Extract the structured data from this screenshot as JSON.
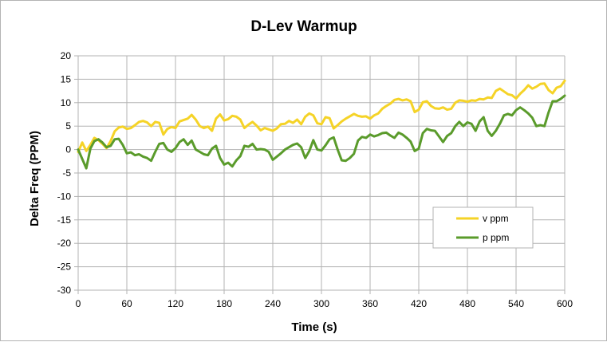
{
  "chart_data": {
    "type": "line",
    "title": "D-Lev Warmup",
    "xlabel": "Time (s)",
    "ylabel": "Delta Freq (PPM)",
    "xlim": [
      0,
      600
    ],
    "ylim": [
      -30,
      20
    ],
    "xticks": [
      0,
      60,
      120,
      180,
      240,
      300,
      360,
      420,
      480,
      540,
      600
    ],
    "yticks": [
      20,
      15,
      10,
      5,
      0,
      -5,
      -10,
      -15,
      -20,
      -25,
      -30
    ],
    "grid": true,
    "legend_position": "bottom-right",
    "series": [
      {
        "name": "v ppm",
        "color": "#f5d327",
        "x": [
          0,
          5,
          10,
          15,
          20,
          25,
          30,
          35,
          40,
          45,
          50,
          55,
          60,
          65,
          70,
          75,
          80,
          85,
          90,
          95,
          100,
          105,
          110,
          115,
          120,
          125,
          130,
          135,
          140,
          145,
          150,
          155,
          160,
          165,
          170,
          175,
          180,
          185,
          190,
          195,
          200,
          205,
          210,
          215,
          220,
          225,
          230,
          235,
          240,
          245,
          250,
          255,
          260,
          265,
          270,
          275,
          280,
          285,
          290,
          295,
          300,
          305,
          310,
          315,
          320,
          325,
          330,
          335,
          340,
          345,
          350,
          355,
          360,
          365,
          370,
          375,
          380,
          385,
          390,
          395,
          400,
          405,
          410,
          415,
          420,
          425,
          430,
          435,
          440,
          445,
          450,
          455,
          460,
          465,
          470,
          475,
          480,
          485,
          490,
          495,
          500,
          505,
          510,
          515,
          520,
          525,
          530,
          535,
          540,
          545,
          550,
          555,
          560,
          565,
          570,
          575,
          580,
          585,
          590,
          595,
          600
        ],
        "values": [
          -0.5,
          1.5,
          -0.3,
          1.0,
          2.5,
          2.0,
          1.2,
          0.3,
          1.8,
          3.9,
          4.7,
          4.9,
          4.4,
          4.6,
          5.2,
          5.9,
          6.1,
          5.8,
          5.0,
          5.9,
          5.7,
          3.2,
          4.4,
          4.8,
          4.6,
          6.0,
          6.3,
          6.6,
          7.4,
          6.4,
          5.0,
          4.6,
          4.9,
          4.0,
          6.6,
          7.5,
          6.2,
          6.5,
          7.2,
          7.0,
          6.4,
          4.6,
          5.3,
          5.9,
          5.1,
          4.1,
          4.6,
          4.3,
          4.0,
          4.5,
          5.4,
          5.5,
          6.1,
          5.7,
          6.4,
          5.4,
          7.0,
          7.7,
          7.3,
          5.6,
          5.4,
          6.9,
          6.7,
          4.5,
          5.2,
          6.0,
          6.6,
          7.1,
          7.6,
          7.2,
          7.0,
          7.1,
          6.6,
          7.3,
          7.7,
          8.7,
          9.3,
          9.8,
          10.6,
          10.8,
          10.5,
          10.7,
          10.3,
          8.0,
          8.5,
          10.1,
          10.3,
          9.3,
          8.8,
          8.7,
          9.0,
          8.5,
          8.7,
          10.0,
          10.5,
          10.4,
          10.2,
          10.5,
          10.4,
          10.8,
          10.7,
          11.1,
          11.0,
          12.5,
          13.0,
          12.4,
          11.8,
          11.6,
          10.9,
          11.9,
          12.7,
          13.7,
          13.0,
          13.4,
          14.0,
          14.1,
          12.7,
          12.0,
          13.2,
          13.5,
          14.7
        ]
      },
      {
        "name": "p ppm",
        "color": "#5a9b2b",
        "x": [
          0,
          5,
          10,
          15,
          20,
          25,
          30,
          35,
          40,
          45,
          50,
          55,
          60,
          65,
          70,
          75,
          80,
          85,
          90,
          95,
          100,
          105,
          110,
          115,
          120,
          125,
          130,
          135,
          140,
          145,
          150,
          155,
          160,
          165,
          170,
          175,
          180,
          185,
          190,
          195,
          200,
          205,
          210,
          215,
          220,
          225,
          230,
          235,
          240,
          245,
          250,
          255,
          260,
          265,
          270,
          275,
          280,
          285,
          290,
          295,
          300,
          305,
          310,
          315,
          320,
          325,
          330,
          335,
          340,
          345,
          350,
          355,
          360,
          365,
          370,
          375,
          380,
          385,
          390,
          395,
          400,
          405,
          410,
          415,
          420,
          425,
          430,
          435,
          440,
          445,
          450,
          455,
          460,
          465,
          470,
          475,
          480,
          485,
          490,
          495,
          500,
          505,
          510,
          515,
          520,
          525,
          530,
          535,
          540,
          545,
          550,
          555,
          560,
          565,
          570,
          575,
          580,
          585,
          590,
          595,
          600
        ],
        "values": [
          0.0,
          -2.0,
          -4.0,
          0.2,
          1.8,
          2.2,
          1.5,
          0.5,
          0.8,
          2.2,
          2.3,
          1.0,
          -0.8,
          -0.6,
          -1.2,
          -1.0,
          -1.5,
          -1.8,
          -2.4,
          -0.5,
          1.2,
          1.4,
          0.0,
          -0.5,
          0.3,
          1.6,
          2.2,
          1.0,
          1.9,
          0.0,
          -0.5,
          -1.0,
          -1.2,
          0.2,
          0.8,
          -1.8,
          -3.2,
          -2.8,
          -3.6,
          -2.3,
          -1.4,
          0.8,
          0.6,
          1.2,
          0.0,
          0.1,
          0.0,
          -0.5,
          -2.2,
          -1.5,
          -0.8,
          0.0,
          0.5,
          1.0,
          1.3,
          0.5,
          -1.8,
          -0.3,
          2.0,
          0.0,
          -0.2,
          0.9,
          2.2,
          2.6,
          0.0,
          -2.3,
          -2.4,
          -1.8,
          -0.9,
          1.9,
          2.7,
          2.5,
          3.2,
          2.8,
          3.1,
          3.5,
          3.6,
          3.0,
          2.5,
          3.6,
          3.2,
          2.5,
          1.7,
          -0.3,
          0.2,
          3.5,
          4.4,
          4.1,
          4.0,
          2.8,
          1.6,
          2.9,
          3.5,
          5.0,
          5.9,
          5.0,
          5.8,
          5.5,
          4.0,
          6.0,
          6.9,
          4.0,
          2.9,
          4.0,
          5.5,
          7.3,
          7.6,
          7.3,
          8.4,
          9.0,
          8.4,
          7.7,
          6.8,
          5.0,
          5.2,
          5.0,
          7.9,
          10.3,
          10.3,
          10.8,
          11.5
        ]
      }
    ]
  }
}
